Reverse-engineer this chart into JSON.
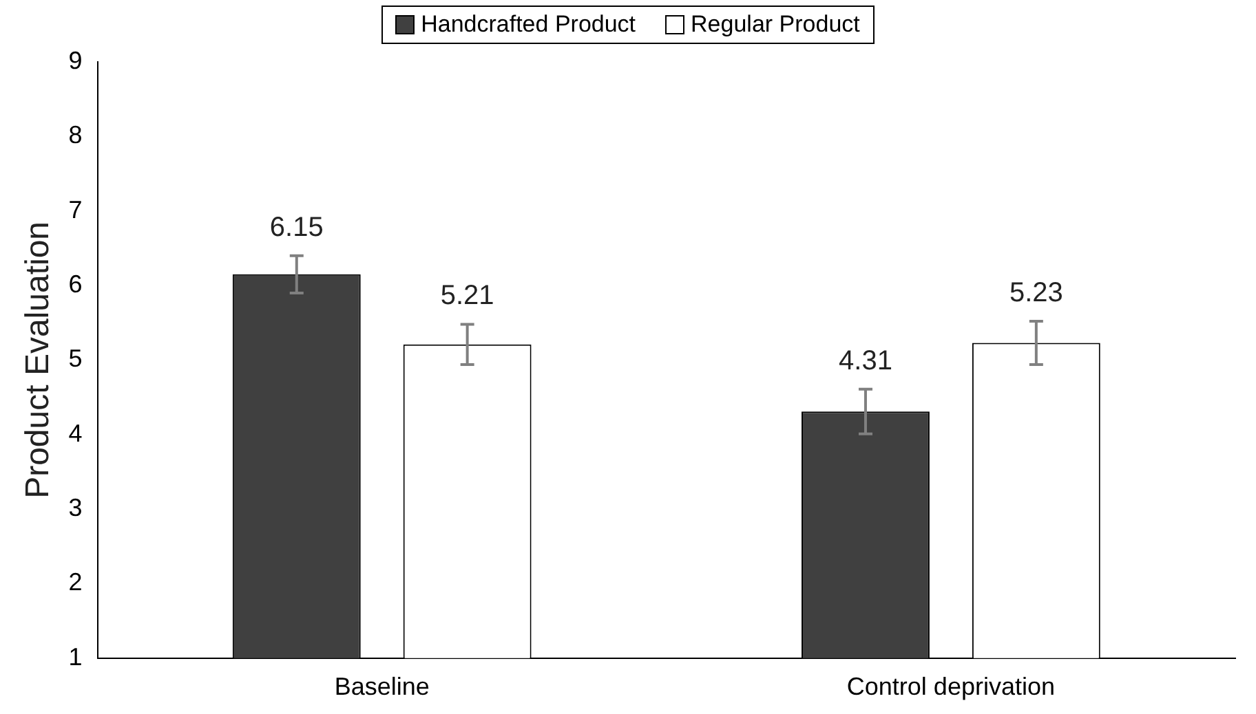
{
  "chart_data": {
    "type": "bar",
    "ylabel": "Product Evaluation",
    "categories": [
      "Baseline",
      "Control deprivation"
    ],
    "series": [
      {
        "name": "Handcrafted Product",
        "color": "#404040",
        "values": [
          6.15,
          4.31
        ],
        "errors": [
          0.25,
          0.3
        ]
      },
      {
        "name": "Regular Product",
        "color": "#ffffff",
        "values": [
          5.21,
          5.23
        ],
        "errors": [
          0.27,
          0.29
        ]
      }
    ],
    "ylim": [
      1,
      9
    ],
    "yticks": [
      1,
      2,
      3,
      4,
      5,
      6,
      7,
      8,
      9
    ],
    "grid": false,
    "legend": "top",
    "data_labels": true
  }
}
